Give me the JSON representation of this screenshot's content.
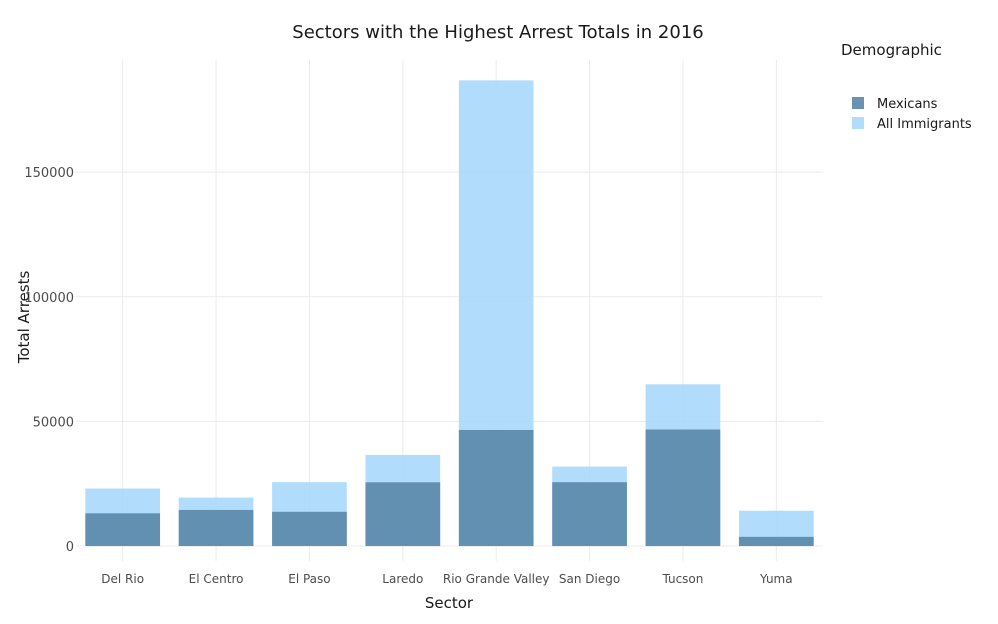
{
  "chart_data": {
    "type": "bar",
    "title": "Sectors with the Highest Arrest Totals in 2016",
    "xlabel": "Sector",
    "ylabel": "Total Arrests",
    "categories": [
      "Del Rio",
      "El Centro",
      "El Paso",
      "Laredo",
      "Rio Grande Valley",
      "San Diego",
      "Tucson",
      "Yuma"
    ],
    "series": [
      {
        "name": "All Immigrants",
        "values": [
          23078,
          19448,
          25634,
          36562,
          186830,
          31891,
          64891,
          14170
        ]
      },
      {
        "name": "Mexicans",
        "values": [
          13129,
          14471,
          13739,
          25574,
          46562,
          25615,
          46759,
          3700
        ]
      }
    ],
    "ylim": [
      -6000,
      195000
    ],
    "yticks": [
      0,
      50000,
      100000,
      150000
    ],
    "grid": true,
    "overlay": true,
    "legend": {
      "title": "Demographic",
      "position": "right",
      "order": [
        "Mexicans",
        "All Immigrants"
      ]
    },
    "colors": {
      "Mexicans": "#5a87a8",
      "All Immigrants": "#a8d8fb"
    }
  }
}
